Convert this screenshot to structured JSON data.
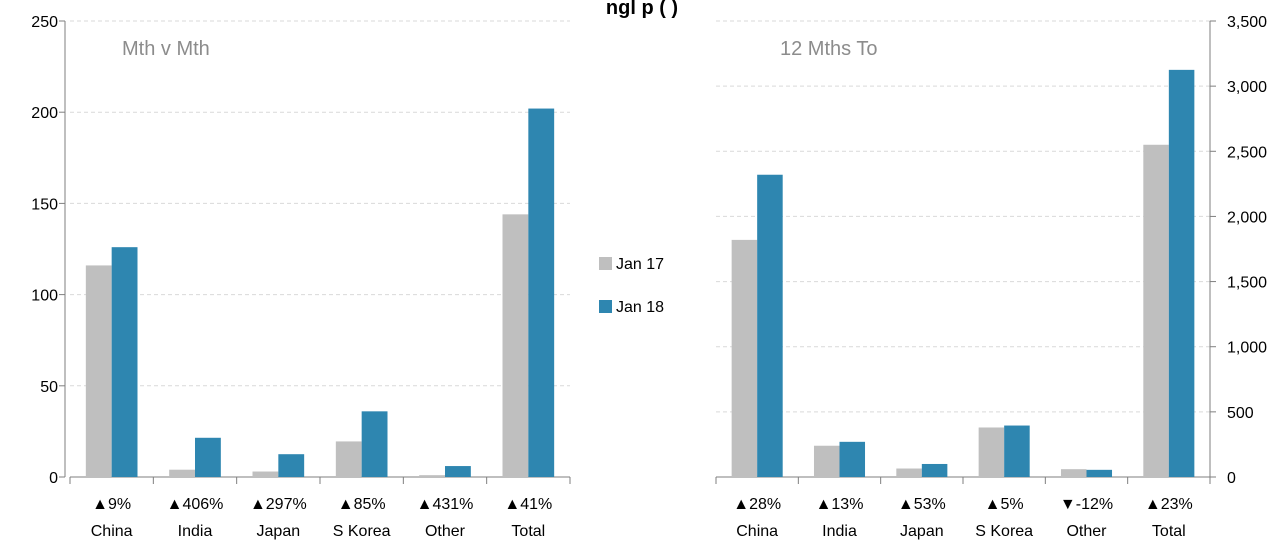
{
  "chart_data": {
    "type": "bar",
    "title": "ngl p               (        )",
    "legend": {
      "position": "center",
      "entries": [
        "Jan 17",
        "Jan 18"
      ]
    },
    "colors": {
      "jan17": "#bfbfbf",
      "jan18": "#2e86b0"
    },
    "panels": [
      {
        "subtitle": "Mth v Mth",
        "categories": [
          "China",
          "India",
          "Japan",
          "S Korea",
          "Other",
          "Total"
        ],
        "changes": [
          "▲9%",
          "▲406%",
          "▲297%",
          "▲85%",
          "▲431%",
          "▲41%"
        ],
        "series": [
          {
            "name": "Jan 17",
            "values": [
              116,
              4,
              3,
              19.5,
              1,
              144
            ]
          },
          {
            "name": "Jan 18",
            "values": [
              126,
              21.5,
              12.5,
              36,
              6,
              202
            ]
          }
        ],
        "ylim": [
          0,
          250
        ],
        "yticks": [
          "0",
          "50",
          "100",
          "150",
          "200",
          "250"
        ],
        "ytick_values": [
          0,
          50,
          100,
          150,
          200,
          250
        ],
        "axis_side": "left",
        "grid": true
      },
      {
        "subtitle": "12 Mths To",
        "categories": [
          "China",
          "India",
          "Japan",
          "S Korea",
          "Other",
          "Total"
        ],
        "changes": [
          "▲28%",
          "▲13%",
          "▲53%",
          "▲5%",
          "▼-12%",
          "▲23%"
        ],
        "series": [
          {
            "name": "Jan 17",
            "values": [
              1820,
              240,
              65,
              380,
              60,
              2550
            ]
          },
          {
            "name": "Jan 18",
            "values": [
              2320,
              270,
              100,
              395,
              55,
              3125
            ]
          }
        ],
        "ylim": [
          0,
          3500
        ],
        "yticks": [
          "0",
          "500",
          "1,000",
          "1,500",
          "2,000",
          "2,500",
          "3,000",
          "3,500"
        ],
        "ytick_values": [
          0,
          500,
          1000,
          1500,
          2000,
          2500,
          3000,
          3500
        ],
        "axis_side": "right",
        "grid": true
      }
    ]
  }
}
